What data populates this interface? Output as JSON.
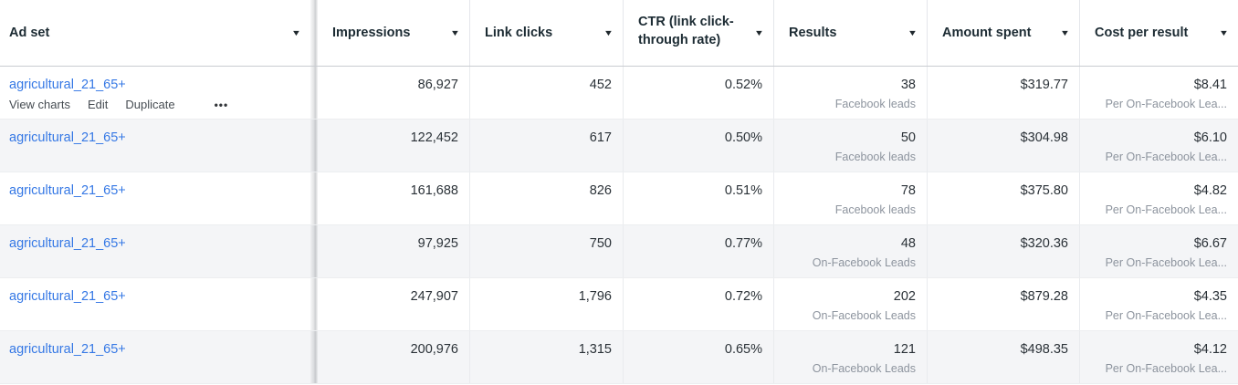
{
  "accent_color": "#3578e5",
  "table": {
    "sort_icon": "▼",
    "columns": [
      {
        "key": "ad_set",
        "label": "Ad set",
        "align": "left"
      },
      {
        "key": "impressions",
        "label": "Impressions",
        "align": "right"
      },
      {
        "key": "link_clicks",
        "label": "Link clicks",
        "align": "right"
      },
      {
        "key": "ctr",
        "label": "CTR (link click-through rate)",
        "align": "right",
        "wrap": true
      },
      {
        "key": "results",
        "label": "Results",
        "align": "right"
      },
      {
        "key": "amount_spent",
        "label": "Amount spent",
        "align": "right"
      },
      {
        "key": "cost_per_result",
        "label": "Cost per result",
        "align": "right"
      }
    ],
    "row_actions": {
      "items": [
        "View charts",
        "Edit",
        "Duplicate"
      ],
      "more_icon": "•••"
    },
    "rows": [
      {
        "ad_set": "agricultural_21_65+",
        "impressions": "86,927",
        "link_clicks": "452",
        "ctr": "0.52%",
        "results": "38",
        "results_label": "Facebook leads",
        "amount_spent": "$319.77",
        "cost_per_result": "$8.41",
        "cost_label": "Per On-Facebook Lea...",
        "show_actions": true
      },
      {
        "ad_set": "agricultural_21_65+",
        "impressions": "122,452",
        "link_clicks": "617",
        "ctr": "0.50%",
        "results": "50",
        "results_label": "Facebook leads",
        "amount_spent": "$304.98",
        "cost_per_result": "$6.10",
        "cost_label": "Per On-Facebook Lea...",
        "show_actions": false
      },
      {
        "ad_set": "agricultural_21_65+",
        "impressions": "161,688",
        "link_clicks": "826",
        "ctr": "0.51%",
        "results": "78",
        "results_label": "Facebook leads",
        "amount_spent": "$375.80",
        "cost_per_result": "$4.82",
        "cost_label": "Per On-Facebook Lea...",
        "show_actions": false
      },
      {
        "ad_set": "agricultural_21_65+",
        "impressions": "97,925",
        "link_clicks": "750",
        "ctr": "0.77%",
        "results": "48",
        "results_label": "On-Facebook Leads",
        "amount_spent": "$320.36",
        "cost_per_result": "$6.67",
        "cost_label": "Per On-Facebook Lea...",
        "show_actions": false
      },
      {
        "ad_set": "agricultural_21_65+",
        "impressions": "247,907",
        "link_clicks": "1,796",
        "ctr": "0.72%",
        "results": "202",
        "results_label": "On-Facebook Leads",
        "amount_spent": "$879.28",
        "cost_per_result": "$4.35",
        "cost_label": "Per On-Facebook Lea...",
        "show_actions": false
      },
      {
        "ad_set": "agricultural_21_65+",
        "impressions": "200,976",
        "link_clicks": "1,315",
        "ctr": "0.65%",
        "results": "121",
        "results_label": "On-Facebook Leads",
        "amount_spent": "$498.35",
        "cost_per_result": "$4.12",
        "cost_label": "Per On-Facebook Lea...",
        "show_actions": false
      }
    ]
  }
}
